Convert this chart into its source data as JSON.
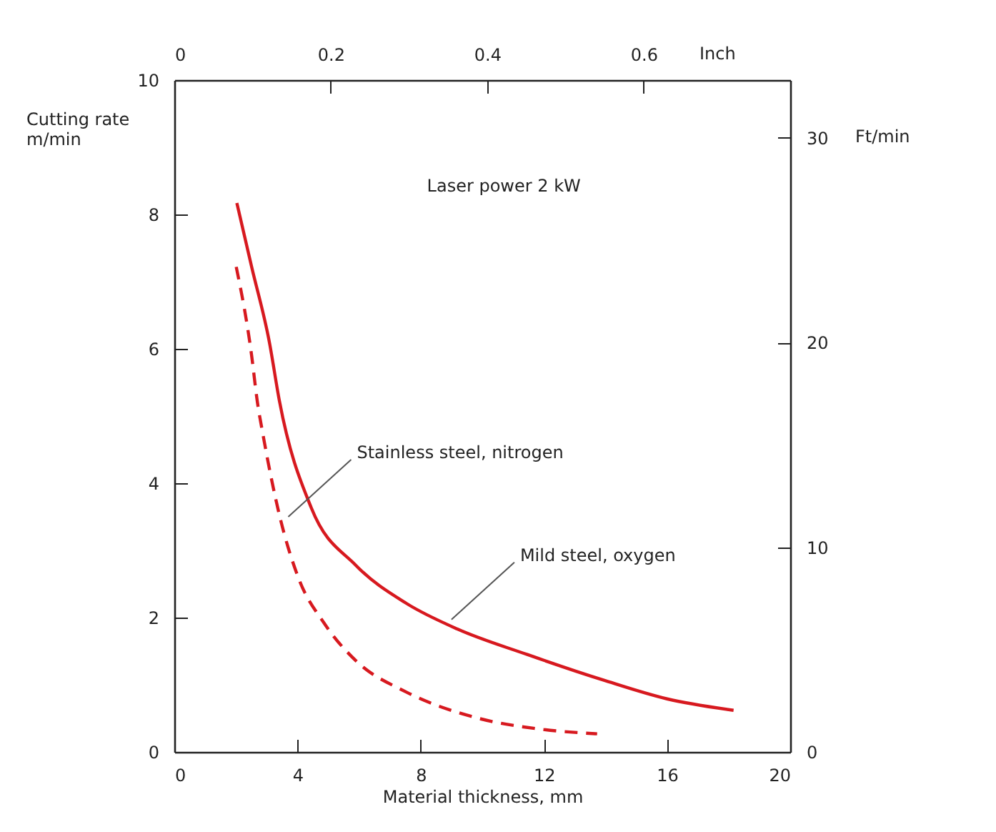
{
  "chart_data": {
    "type": "line",
    "xlabel": "Material thickness, mm",
    "ylabel": "Cutting rate m/min",
    "y2label": "Ft/min",
    "x2label": "Inch",
    "xlim": [
      0,
      20
    ],
    "xticks": [
      0,
      4,
      8,
      12,
      16,
      20
    ],
    "ylim": [
      0,
      10
    ],
    "yticks": [
      0,
      2,
      4,
      6,
      8,
      10
    ],
    "y2lim": [
      0,
      32.81
    ],
    "y2ticks": [
      0,
      10,
      20,
      30
    ],
    "x2lim": [
      0,
      0.7874
    ],
    "x2ticks": [
      {
        "value": 0,
        "label": "0"
      },
      0.2,
      0.4,
      0.6
    ],
    "grid": false,
    "series": [
      {
        "color": "#d7191f",
        "line_style": "solid",
        "x": [
          2.03,
          2.51,
          3.09,
          3.41,
          4.45,
          5.89,
          7.54,
          9.19,
          11.46,
          13.93,
          16.0,
          18.16
        ],
        "values": [
          8.17,
          7.22,
          6.09,
          5.23,
          3.63,
          2.78,
          2.21,
          1.83,
          1.45,
          1.07,
          0.79,
          0.62
        ]
      },
      {
        "color": "#d7191f",
        "line_style": "dashed",
        "x": [
          2.01,
          2.51,
          2.69,
          2.9,
          3.41,
          4.03,
          4.86,
          5.89,
          7.54,
          9.8,
          11.87,
          13.73
        ],
        "values": [
          7.22,
          5.9,
          5.23,
          4.67,
          3.53,
          2.59,
          1.92,
          1.36,
          0.89,
          0.51,
          0.34,
          0.27
        ]
      }
    ],
    "annotations": [
      "Laser power 2 kW",
      {
        "text": "Stainless steel, nitrogen",
        "x": 3.7,
        "y": 3.5
      },
      {
        "text": "Mild steel, oxygen",
        "x": 9.0,
        "y": 1.97
      }
    ]
  }
}
